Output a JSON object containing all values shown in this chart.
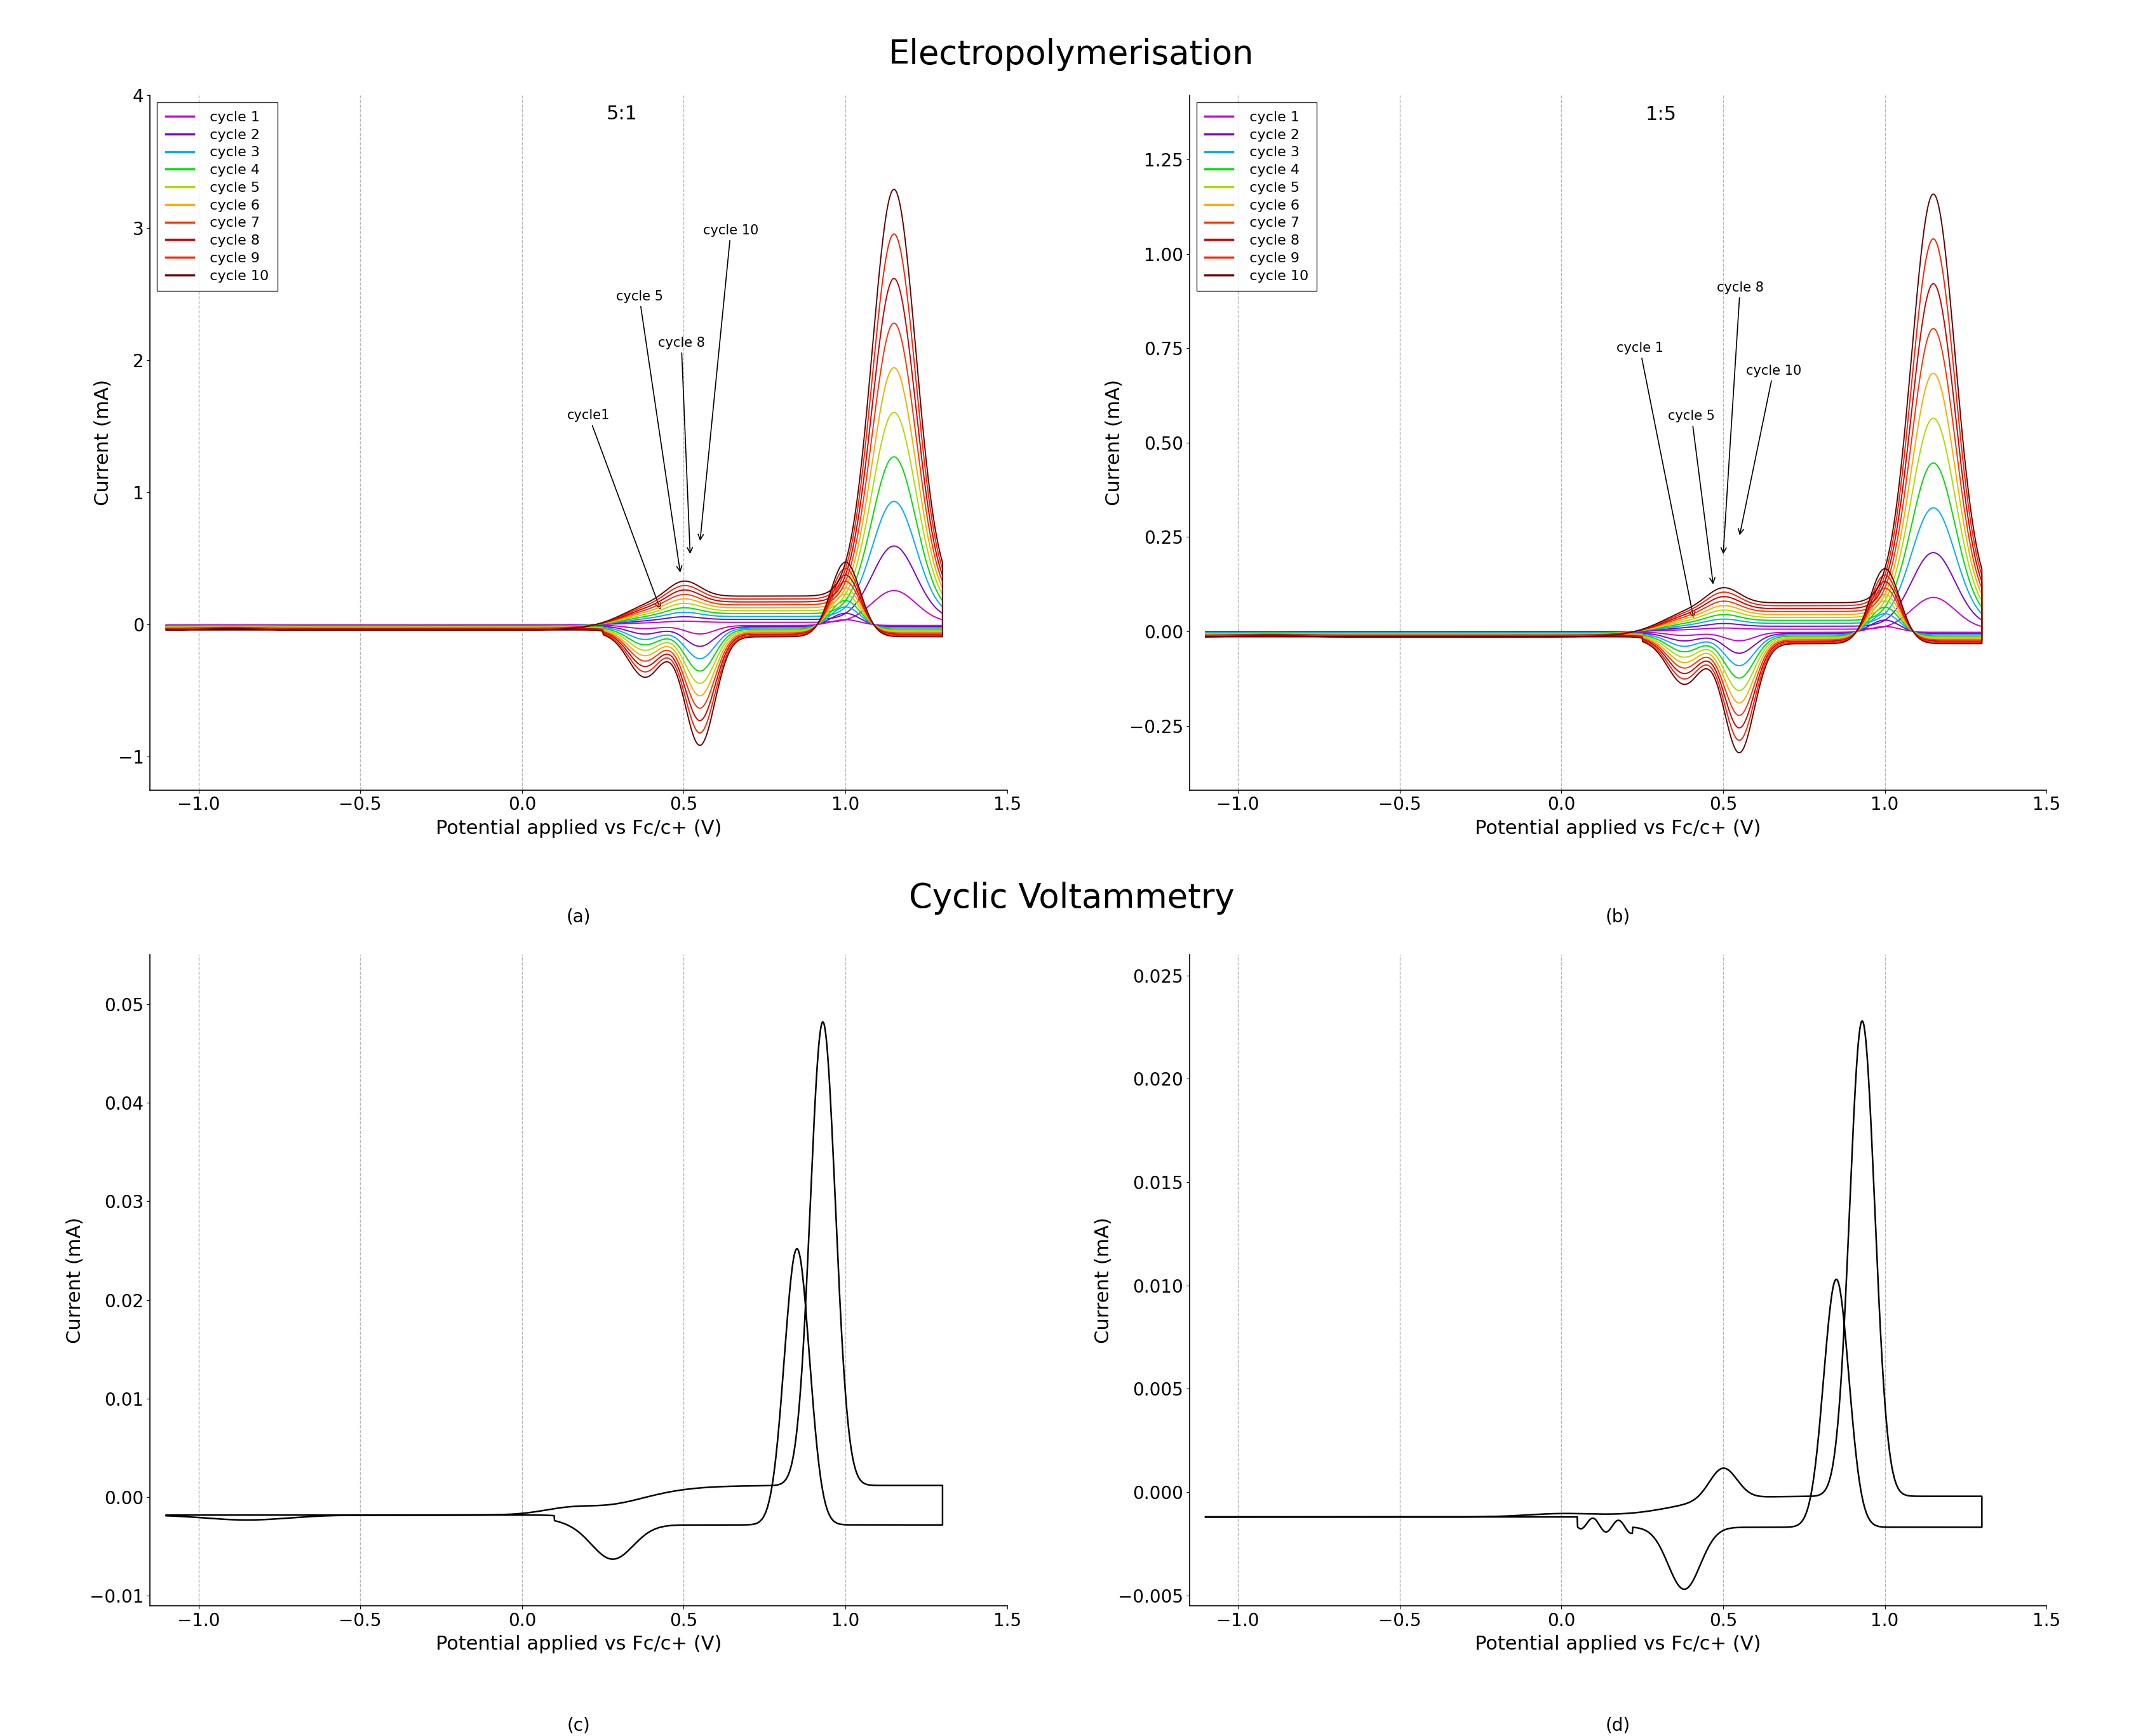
{
  "title_top": "Electropolymerisation",
  "title_bottom": "Cyclic Voltammetry",
  "title_fontsize": 38,
  "xlabel": "Potential applied vs Fc/c+ (V)",
  "ylabel": "Current (mA)",
  "xlabel_fontsize": 22,
  "ylabel_fontsize": 22,
  "tick_fontsize": 20,
  "subplot_labels": [
    "(a)",
    "(b)",
    "(c)",
    "(d)"
  ],
  "cycle_colors": [
    "#cc00cc",
    "#7700dd",
    "#00aaff",
    "#00dd00",
    "#aadd00",
    "#ffaa00",
    "#ff3300",
    "#cc0000",
    "#ff2200",
    "#660000"
  ],
  "dashed_positions": [
    -1.0,
    -0.5,
    0.0,
    0.5,
    1.0
  ],
  "xlim_a": [
    -1.15,
    1.5
  ],
  "ylim_a": [
    -1.25,
    4.0
  ],
  "ylim_b": [
    -0.42,
    1.42
  ],
  "ylim_c": [
    -0.011,
    0.055
  ],
  "ylim_d": [
    -0.0055,
    0.026
  ]
}
